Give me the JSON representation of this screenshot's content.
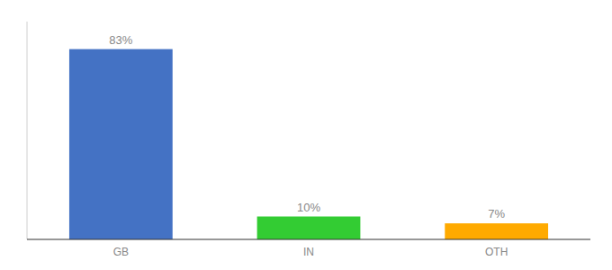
{
  "chart_data": {
    "type": "bar",
    "categories": [
      "GB",
      "IN",
      "OTH"
    ],
    "values": [
      83,
      10,
      7
    ],
    "value_labels": [
      "83%",
      "10%",
      "7%"
    ],
    "colors": [
      "#4472c4",
      "#33cc33",
      "#ffaa00"
    ],
    "ylim": [
      0,
      95
    ],
    "data_labels": true,
    "tick_labels": "x",
    "grid": false
  }
}
